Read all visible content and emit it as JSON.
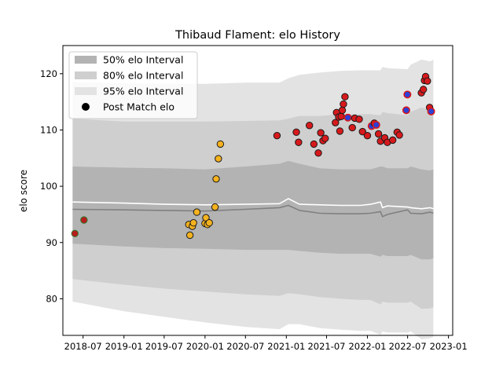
{
  "chart_data": {
    "type": "scatter",
    "title": "Thibaud Flament: elo History",
    "xlabel": "",
    "ylabel": "elo score",
    "xlim": [
      "2018-04-01",
      "2023-01-20"
    ],
    "ylim": [
      73.5,
      125
    ],
    "x_ticks": [
      "2018-07",
      "2019-01",
      "2019-07",
      "2020-01",
      "2020-07",
      "2021-01",
      "2021-07",
      "2022-01",
      "2022-07",
      "2023-01"
    ],
    "y_ticks": [
      80,
      90,
      100,
      110,
      120
    ],
    "legend": {
      "position": "top-left",
      "entries": [
        "50% elo Interval",
        "80% elo Interval",
        "95% elo Interval",
        "Post Match elo"
      ]
    },
    "colors": {
      "band_50": "#b3b3b3",
      "band_80": "#cfcfcf",
      "band_95": "#e3e3e3",
      "mean_line": "#ffffff",
      "median_line": "#808080",
      "point_green_face": "#b71c1c",
      "point_green_edge": "#2e7d32",
      "point_yellow_face": "#f5b21e",
      "point_red_face": "#d7191c",
      "point_blue_face": "#2b3fd6",
      "point_edge": "#1a1a1a"
    },
    "bands": {
      "x": [
        "2018-05-15",
        "2019-01-01",
        "2019-07-01",
        "2020-01-01",
        "2020-07-01",
        "2020-12-01",
        "2021-01-10",
        "2021-03-01",
        "2021-06-01",
        "2021-09-01",
        "2021-12-01",
        "2022-01-15",
        "2022-03-01",
        "2022-03-10",
        "2022-04-01",
        "2022-07-01",
        "2022-07-15",
        "2022-09-01",
        "2022-10-10",
        "2022-10-25"
      ],
      "p95_upper": [
        118.5,
        118.3,
        118.2,
        118.2,
        118.4,
        118.4,
        119.2,
        119.8,
        120.2,
        120.5,
        120.6,
        120.6,
        120.6,
        121.2,
        121.0,
        120.8,
        121.6,
        122.5,
        122.2,
        122.5
      ],
      "p80_upper": [
        112,
        111.5,
        111.5,
        111.5,
        111.6,
        111.7,
        112,
        112.5,
        112.5,
        112.8,
        112.8,
        112.8,
        112.6,
        113.2,
        113,
        112.6,
        113.2,
        114,
        113.5,
        113.8
      ],
      "p50_upper": [
        103.5,
        103.3,
        103.2,
        103.0,
        103.5,
        104.0,
        104.5,
        104.0,
        103.2,
        103.0,
        103.0,
        103.0,
        103.5,
        103.5,
        103.2,
        103.2,
        103.5,
        103.0,
        102.8,
        103.0
      ],
      "p50_lower": [
        89.8,
        89.3,
        89,
        88.9,
        88.7,
        88.7,
        88.7,
        88.5,
        88.2,
        88.0,
        88.0,
        88.0,
        87.5,
        87.8,
        87.6,
        87.6,
        87.8,
        87.0,
        87.0,
        87.2
      ],
      "p80_lower": [
        83.5,
        82.5,
        81.8,
        81.3,
        80.8,
        80.5,
        81.0,
        80.8,
        80.3,
        80.0,
        79.8,
        79.8,
        79.0,
        79.5,
        79.3,
        79.3,
        79.5,
        78.2,
        78.3,
        78.5
      ],
      "p95_lower": [
        79.5,
        77.8,
        76.8,
        75.8,
        75.0,
        74.6,
        75.5,
        75.5,
        74.8,
        74.5,
        74.3,
        74.3,
        73.6,
        74.2,
        74.0,
        74.0,
        74.2,
        72.8,
        73.0,
        73.2
      ],
      "mean": [
        97.2,
        97.0,
        96.8,
        96.7,
        96.8,
        96.9,
        97.8,
        96.8,
        96.7,
        96.6,
        96.6,
        96.8,
        97.2,
        96.2,
        96.5,
        96.3,
        96.2,
        96.0,
        96.2,
        96.0
      ],
      "median": [
        95.9,
        95.8,
        95.7,
        95.6,
        95.9,
        96.2,
        96.6,
        95.7,
        95.2,
        95.1,
        95.1,
        95.2,
        95.5,
        94.6,
        95.0,
        95.8,
        95.2,
        95.1,
        95.4,
        95.2
      ]
    },
    "points": [
      {
        "x": "2018-05-25",
        "y": 91.6,
        "c": "green"
      },
      {
        "x": "2018-07-05",
        "y": 94.0,
        "c": "green"
      },
      {
        "x": "2019-10-20",
        "y": 93.2,
        "c": "yellow"
      },
      {
        "x": "2019-10-25",
        "y": 91.3,
        "c": "yellow"
      },
      {
        "x": "2019-11-05",
        "y": 92.9,
        "c": "yellow"
      },
      {
        "x": "2019-11-10",
        "y": 93.5,
        "c": "yellow"
      },
      {
        "x": "2019-11-25",
        "y": 95.4,
        "c": "yellow"
      },
      {
        "x": "2020-01-01",
        "y": 93.4,
        "c": "yellow"
      },
      {
        "x": "2020-01-05",
        "y": 94.4,
        "c": "yellow"
      },
      {
        "x": "2020-01-12",
        "y": 93.2,
        "c": "yellow"
      },
      {
        "x": "2020-01-20",
        "y": 93.5,
        "c": "yellow"
      },
      {
        "x": "2020-02-15",
        "y": 96.3,
        "c": "yellow"
      },
      {
        "x": "2020-02-20",
        "y": 101.3,
        "c": "yellow"
      },
      {
        "x": "2020-03-01",
        "y": 104.9,
        "c": "yellow"
      },
      {
        "x": "2020-03-10",
        "y": 107.5,
        "c": "yellow"
      },
      {
        "x": "2020-11-20",
        "y": 109.0,
        "c": "red"
      },
      {
        "x": "2021-02-15",
        "y": 109.6,
        "c": "red"
      },
      {
        "x": "2021-02-25",
        "y": 107.8,
        "c": "red"
      },
      {
        "x": "2021-04-15",
        "y": 110.8,
        "c": "red"
      },
      {
        "x": "2021-05-05",
        "y": 107.5,
        "c": "red"
      },
      {
        "x": "2021-05-25",
        "y": 105.9,
        "c": "red"
      },
      {
        "x": "2021-06-05",
        "y": 109.5,
        "c": "red"
      },
      {
        "x": "2021-06-15",
        "y": 108.1,
        "c": "red"
      },
      {
        "x": "2021-06-25",
        "y": 108.5,
        "c": "red"
      },
      {
        "x": "2021-08-10",
        "y": 111.3,
        "c": "red"
      },
      {
        "x": "2021-08-15",
        "y": 113.1,
        "c": "red"
      },
      {
        "x": "2021-08-25",
        "y": 112.3,
        "c": "red"
      },
      {
        "x": "2021-08-30",
        "y": 109.8,
        "c": "red"
      },
      {
        "x": "2021-09-05",
        "y": 112.4,
        "c": "red"
      },
      {
        "x": "2021-09-10",
        "y": 113.5,
        "c": "red"
      },
      {
        "x": "2021-09-15",
        "y": 114.6,
        "c": "red"
      },
      {
        "x": "2021-09-22",
        "y": 115.9,
        "c": "red"
      },
      {
        "x": "2021-10-05",
        "y": 112.2,
        "c": "blue"
      },
      {
        "x": "2021-10-25",
        "y": 110.4,
        "c": "red"
      },
      {
        "x": "2021-11-05",
        "y": 112.1,
        "c": "red"
      },
      {
        "x": "2021-11-25",
        "y": 111.9,
        "c": "red"
      },
      {
        "x": "2021-12-10",
        "y": 109.7,
        "c": "red"
      },
      {
        "x": "2022-01-01",
        "y": 109.0,
        "c": "red"
      },
      {
        "x": "2022-01-20",
        "y": 110.7,
        "c": "blue"
      },
      {
        "x": "2022-02-01",
        "y": 111.2,
        "c": "red"
      },
      {
        "x": "2022-02-10",
        "y": 110.9,
        "c": "blue"
      },
      {
        "x": "2022-02-20",
        "y": 109.3,
        "c": "red"
      },
      {
        "x": "2022-03-01",
        "y": 108.0,
        "c": "red"
      },
      {
        "x": "2022-03-20",
        "y": 108.6,
        "c": "red"
      },
      {
        "x": "2022-04-01",
        "y": 107.8,
        "c": "red"
      },
      {
        "x": "2022-04-25",
        "y": 108.2,
        "c": "red"
      },
      {
        "x": "2022-05-15",
        "y": 109.6,
        "c": "red"
      },
      {
        "x": "2022-05-25",
        "y": 109.1,
        "c": "red"
      },
      {
        "x": "2022-06-25",
        "y": 113.5,
        "c": "blue"
      },
      {
        "x": "2022-06-30",
        "y": 116.3,
        "c": "blue"
      },
      {
        "x": "2022-09-01",
        "y": 116.6,
        "c": "red"
      },
      {
        "x": "2022-09-10",
        "y": 117.2,
        "c": "red"
      },
      {
        "x": "2022-09-15",
        "y": 118.8,
        "c": "red"
      },
      {
        "x": "2022-09-20",
        "y": 119.5,
        "c": "red"
      },
      {
        "x": "2022-09-28",
        "y": 118.7,
        "c": "red"
      },
      {
        "x": "2022-10-08",
        "y": 114.0,
        "c": "red"
      },
      {
        "x": "2022-10-15",
        "y": 113.3,
        "c": "blue"
      }
    ]
  }
}
